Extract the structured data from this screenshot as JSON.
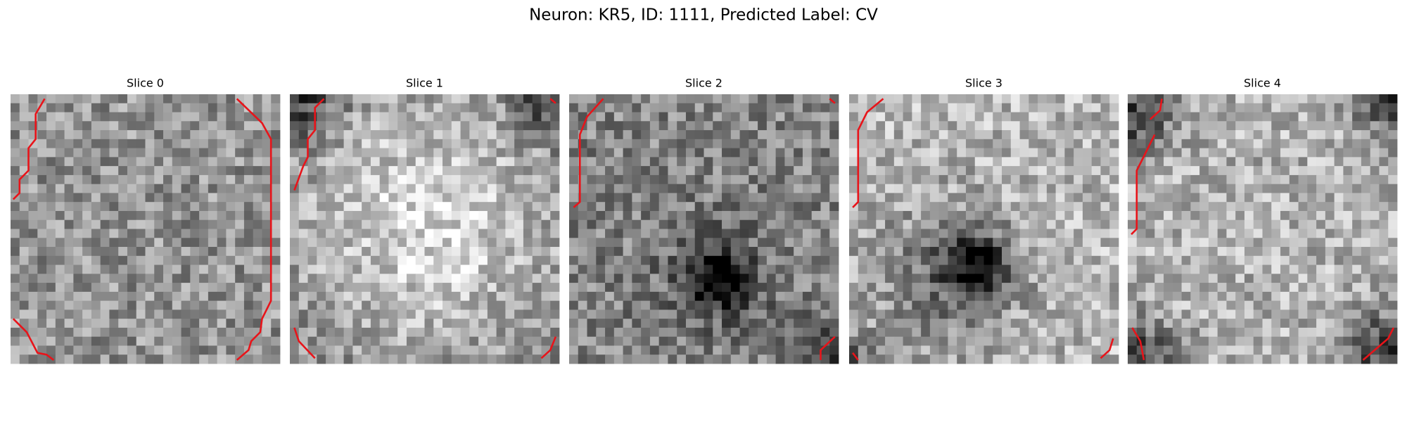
{
  "figure": {
    "title": "Neuron: KR5, ID: 1111, Predicted Label: CV",
    "panels": [
      {
        "title": "Slice 0"
      },
      {
        "title": "Slice 1"
      },
      {
        "title": "Slice 2"
      },
      {
        "title": "Slice 3"
      },
      {
        "title": "Slice 4"
      }
    ]
  }
}
